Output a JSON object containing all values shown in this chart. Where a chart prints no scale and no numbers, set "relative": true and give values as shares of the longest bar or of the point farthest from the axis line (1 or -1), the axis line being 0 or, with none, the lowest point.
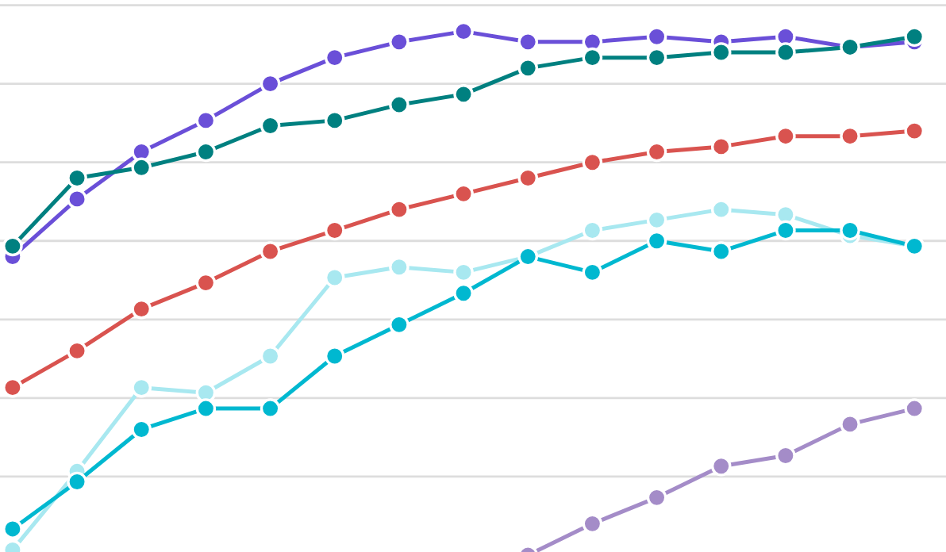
{
  "chart_data": {
    "type": "line",
    "relative": true,
    "categories": [
      null,
      null,
      null,
      null,
      null,
      null,
      null,
      null,
      null,
      null,
      null,
      null,
      null,
      null,
      null
    ],
    "grid": "y",
    "marker": "circle",
    "line_style": "solid",
    "legend": false,
    "series": [
      {
        "color": "#6a4fd8",
        "values": [
          0.57,
          0.68,
          0.77,
          0.83,
          0.9,
          0.95,
          0.98,
          1.0,
          0.98,
          0.98,
          0.99,
          0.98,
          0.99,
          0.97,
          0.98
        ]
      },
      {
        "color": "#008080",
        "values": [
          0.59,
          0.72,
          0.74,
          0.77,
          0.82,
          0.83,
          0.86,
          0.88,
          0.93,
          0.95,
          0.95,
          0.96,
          0.96,
          0.97,
          0.99
        ]
      },
      {
        "color": "#d9534f",
        "values": [
          0.32,
          0.39,
          0.47,
          0.52,
          0.58,
          0.62,
          0.66,
          0.69,
          0.72,
          0.75,
          0.77,
          0.78,
          0.8,
          0.8,
          0.81
        ]
      },
      {
        "color": "#a8e8f0",
        "values": [
          0.01,
          0.16,
          0.32,
          0.31,
          0.38,
          0.53,
          0.55,
          0.54,
          0.57,
          0.62,
          0.64,
          0.66,
          0.65,
          0.61,
          0.59
        ]
      },
      {
        "color": "#00b8d0",
        "values": [
          0.05,
          0.14,
          0.24,
          0.28,
          0.28,
          0.38,
          0.44,
          0.5,
          0.57,
          0.54,
          0.6,
          0.58,
          0.62,
          0.62,
          0.59
        ]
      },
      {
        "color": "#a48cc8",
        "values": [
          null,
          null,
          null,
          null,
          null,
          null,
          null,
          null,
          0.0,
          0.06,
          0.11,
          0.17,
          0.19,
          0.25,
          0.28
        ]
      }
    ]
  }
}
